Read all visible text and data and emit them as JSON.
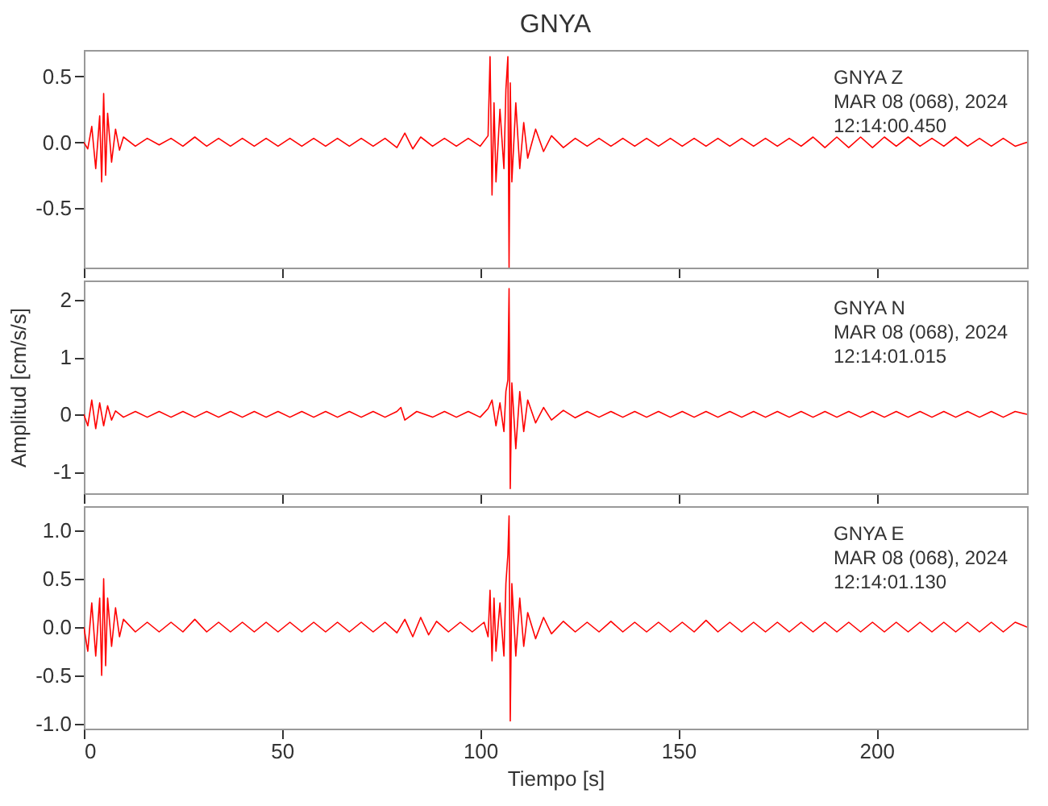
{
  "chart_data": [
    {
      "type": "line",
      "title": "GNYA",
      "annotations": [
        "GNYA   Z",
        "MAR 08 (068), 2024",
        "12:14:00.450"
      ],
      "xlim": [
        0,
        238
      ],
      "xticks": [
        0,
        50,
        100,
        150,
        200
      ],
      "ylim": [
        -0.95,
        0.7
      ],
      "yticks": [
        {
          "value": 0.5,
          "label": "0.5"
        },
        {
          "value": 0,
          "label": "0.0"
        },
        {
          "value": -0.5,
          "label": "-0.5"
        }
      ],
      "tick_labels": "y",
      "grid": false,
      "series": [
        {
          "color": "#ff0000",
          "x": [
            0,
            1,
            2,
            3,
            4,
            4.5,
            5,
            5.5,
            6,
            7,
            8,
            9,
            10,
            13,
            16,
            19,
            22,
            25,
            28,
            31,
            34,
            37,
            40,
            43,
            46,
            49,
            52,
            55,
            58,
            61,
            64,
            67,
            70,
            73,
            76,
            79,
            81,
            83,
            85,
            88,
            91,
            94,
            97,
            100,
            102,
            102.5,
            103,
            103.5,
            104,
            105,
            106,
            106.5,
            107,
            107.3,
            107.6,
            108,
            109,
            110,
            111,
            112,
            114,
            116,
            118,
            121,
            124,
            127,
            130,
            133,
            136,
            139,
            142,
            145,
            148,
            151,
            154,
            157,
            160,
            163,
            166,
            169,
            172,
            175,
            178,
            181,
            184,
            187,
            190,
            193,
            196,
            199,
            202,
            205,
            208,
            211,
            214,
            217,
            220,
            223,
            226,
            229,
            232,
            235,
            238
          ],
          "values": [
            0,
            -0.05,
            0.12,
            -0.2,
            0.2,
            -0.3,
            0.37,
            -0.25,
            0.22,
            -0.15,
            0.1,
            -0.06,
            0.04,
            -0.03,
            0.03,
            -0.02,
            0.03,
            -0.03,
            0.04,
            -0.03,
            0.03,
            -0.03,
            0.03,
            -0.03,
            0.03,
            -0.03,
            0.03,
            -0.03,
            0.03,
            -0.03,
            0.03,
            -0.03,
            0.03,
            -0.03,
            0.03,
            -0.04,
            0.07,
            -0.05,
            0.04,
            -0.03,
            0.03,
            -0.03,
            0.03,
            -0.03,
            0.05,
            0.65,
            -0.4,
            0.3,
            -0.3,
            0.25,
            -0.2,
            0.4,
            0.65,
            -0.95,
            0.45,
            -0.3,
            0.3,
            -0.2,
            0.15,
            -0.12,
            0.1,
            -0.07,
            0.05,
            -0.04,
            0.03,
            -0.03,
            0.03,
            -0.03,
            0.03,
            -0.03,
            0.03,
            -0.03,
            0.03,
            -0.03,
            0.03,
            -0.03,
            0.03,
            -0.03,
            0.03,
            -0.03,
            0.03,
            -0.03,
            0.03,
            -0.03,
            0.04,
            -0.04,
            0.04,
            -0.04,
            0.04,
            -0.04,
            0.04,
            -0.03,
            0.04,
            -0.03,
            0.03,
            -0.03,
            0.04,
            -0.03,
            0.03,
            -0.03,
            0.03,
            -0.03,
            0
          ]
        }
      ]
    },
    {
      "type": "line",
      "ylabel": "Amplitud [cm/s/s]",
      "annotations": [
        "GNYA   N",
        "MAR 08 (068), 2024",
        "12:14:01.015"
      ],
      "xlim": [
        0,
        238
      ],
      "xticks": [
        0,
        50,
        100,
        150,
        200
      ],
      "ylim": [
        -1.38,
        2.34
      ],
      "yticks": [
        2,
        1,
        0,
        -1
      ],
      "tick_labels": "y",
      "grid": false,
      "series": [
        {
          "color": "#ff0000",
          "x": [
            0,
            1,
            2,
            3,
            4,
            5,
            6,
            7,
            8,
            10,
            13,
            16,
            19,
            22,
            25,
            28,
            31,
            34,
            37,
            40,
            43,
            46,
            49,
            52,
            55,
            58,
            61,
            64,
            67,
            70,
            73,
            76,
            79,
            80,
            81,
            84,
            88,
            91,
            94,
            97,
            100,
            102,
            103,
            104,
            105,
            106,
            106.5,
            107,
            107.3,
            107.6,
            108,
            109,
            110,
            111,
            112,
            114,
            116,
            118,
            121,
            124,
            127,
            130,
            133,
            136,
            139,
            142,
            145,
            148,
            151,
            154,
            157,
            160,
            163,
            166,
            169,
            172,
            175,
            178,
            181,
            184,
            187,
            190,
            193,
            196,
            199,
            202,
            205,
            208,
            211,
            214,
            217,
            220,
            223,
            226,
            229,
            232,
            235,
            238
          ],
          "values": [
            0,
            -0.2,
            0.25,
            -0.25,
            0.2,
            -0.2,
            0.15,
            -0.1,
            0.06,
            -0.05,
            0.05,
            -0.05,
            0.05,
            -0.05,
            0.05,
            -0.05,
            0.05,
            -0.05,
            0.05,
            -0.05,
            0.05,
            -0.05,
            0.05,
            -0.05,
            0.05,
            -0.05,
            0.05,
            -0.05,
            0.05,
            -0.05,
            0.05,
            -0.05,
            0.05,
            0.12,
            -0.1,
            0.05,
            -0.05,
            0.05,
            -0.05,
            0.05,
            -0.05,
            0.1,
            0.25,
            -0.2,
            0.2,
            -0.3,
            0.4,
            0.6,
            2.2,
            -1.3,
            0.55,
            -0.6,
            0.4,
            -0.3,
            0.25,
            -0.15,
            0.12,
            -0.1,
            0.07,
            -0.06,
            0.05,
            -0.05,
            0.05,
            -0.05,
            0.05,
            -0.05,
            0.05,
            -0.05,
            0.05,
            -0.05,
            0.05,
            -0.05,
            0.05,
            -0.05,
            0.05,
            -0.05,
            0.05,
            -0.05,
            0.05,
            -0.05,
            0.05,
            -0.05,
            0.05,
            -0.05,
            0.05,
            -0.05,
            0.05,
            -0.05,
            0.05,
            -0.05,
            0.05,
            -0.05,
            0.05,
            -0.05,
            0.05,
            -0.05,
            0.05,
            0
          ]
        }
      ]
    },
    {
      "type": "line",
      "xlabel": "Tiempo [s]",
      "annotations": [
        "GNYA   E",
        "MAR 08 (068), 2024",
        "12:14:01.130"
      ],
      "xlim": [
        0,
        238
      ],
      "xticks": [
        0,
        50,
        100,
        150,
        200
      ],
      "ylim": [
        -1.05,
        1.25
      ],
      "yticks": [
        {
          "value": 1,
          "label": "1.0"
        },
        {
          "value": 0.5,
          "label": "0.5"
        },
        {
          "value": 0,
          "label": "0.0"
        },
        {
          "value": -0.5,
          "label": "-0.5"
        },
        {
          "value": -1,
          "label": "-1.0"
        }
      ],
      "grid": false,
      "series": [
        {
          "color": "#ff0000",
          "x": [
            0,
            1,
            2,
            3,
            4,
            4.5,
            5,
            5.5,
            6,
            7,
            8,
            9,
            10,
            13,
            16,
            19,
            22,
            25,
            28,
            31,
            34,
            37,
            40,
            43,
            46,
            49,
            52,
            55,
            58,
            61,
            64,
            67,
            70,
            73,
            76,
            79,
            81,
            83,
            85,
            87,
            89,
            92,
            95,
            98,
            101,
            102,
            102.5,
            103,
            103.5,
            104,
            105,
            106,
            106.5,
            107,
            107.3,
            107.6,
            108,
            109,
            110,
            111,
            112,
            114,
            116,
            118,
            121,
            124,
            127,
            130,
            133,
            136,
            139,
            142,
            145,
            148,
            151,
            154,
            157,
            160,
            163,
            166,
            169,
            172,
            175,
            178,
            181,
            184,
            187,
            190,
            193,
            196,
            199,
            202,
            205,
            208,
            211,
            214,
            217,
            220,
            223,
            226,
            229,
            232,
            235,
            238
          ],
          "values": [
            0,
            -0.25,
            0.25,
            -0.3,
            0.3,
            -0.5,
            0.5,
            -0.4,
            0.3,
            -0.2,
            0.2,
            -0.1,
            0.08,
            -0.05,
            0.05,
            -0.05,
            0.05,
            -0.05,
            0.08,
            -0.05,
            0.05,
            -0.05,
            0.05,
            -0.05,
            0.05,
            -0.05,
            0.05,
            -0.05,
            0.05,
            -0.05,
            0.05,
            -0.05,
            0.05,
            -0.05,
            0.05,
            -0.06,
            0.08,
            -0.1,
            0.1,
            -0.08,
            0.06,
            -0.05,
            0.05,
            -0.05,
            0.05,
            -0.1,
            0.38,
            -0.35,
            0.3,
            -0.25,
            0.25,
            -0.3,
            0.45,
            0.75,
            1.15,
            -0.97,
            0.45,
            -0.3,
            0.3,
            -0.2,
            0.15,
            -0.12,
            0.1,
            -0.07,
            0.06,
            -0.05,
            0.05,
            -0.05,
            0.06,
            -0.05,
            0.05,
            -0.05,
            0.05,
            -0.05,
            0.05,
            -0.05,
            0.07,
            -0.05,
            0.05,
            -0.05,
            0.05,
            -0.05,
            0.05,
            -0.05,
            0.05,
            -0.05,
            0.05,
            -0.05,
            0.05,
            -0.05,
            0.05,
            -0.05,
            0.05,
            -0.05,
            0.05,
            -0.05,
            0.05,
            -0.05,
            0.05,
            -0.05,
            0.05,
            -0.05,
            0.05,
            0
          ]
        }
      ]
    }
  ]
}
